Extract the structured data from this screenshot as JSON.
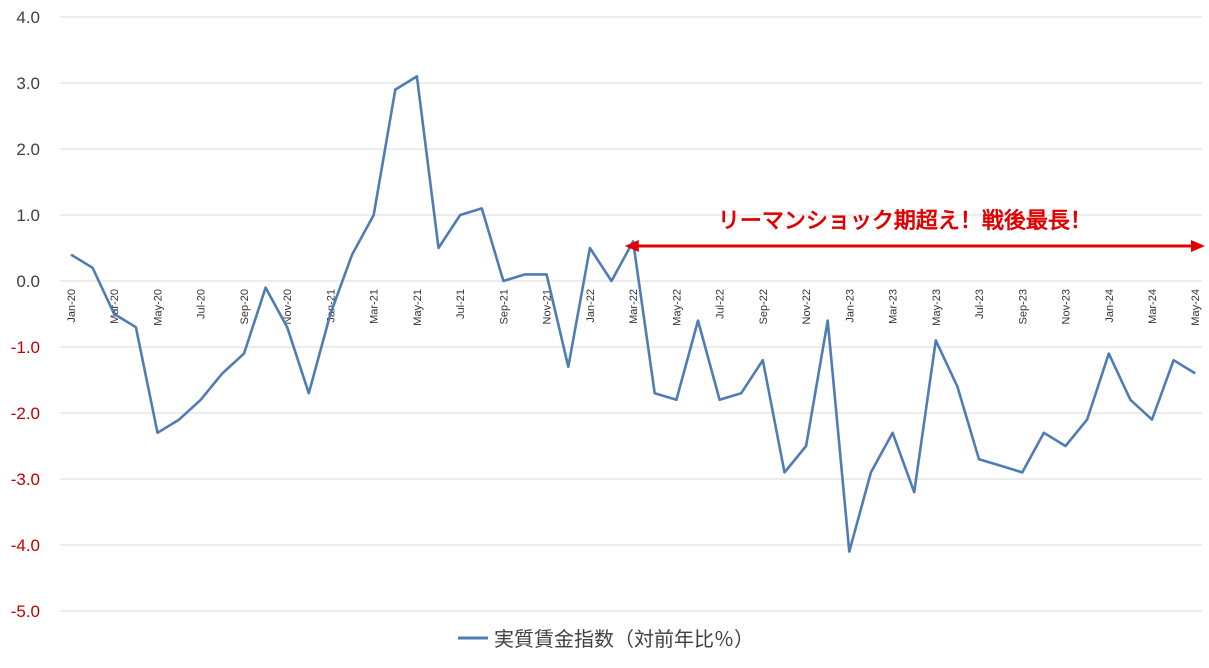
{
  "chart_data": {
    "type": "line",
    "title": "",
    "xlabel": "",
    "ylabel": "",
    "ylim": [
      -5.0,
      4.0
    ],
    "yticks": [
      "4.0",
      "3.0",
      "2.0",
      "1.0",
      "0.0",
      "-1.0",
      "-2.0",
      "-3.0",
      "-4.0",
      "-5.0"
    ],
    "ytick_values": [
      4,
      3,
      2,
      1,
      0,
      -1,
      -2,
      -3,
      -4,
      -5
    ],
    "grid": true,
    "legend_position": "bottom",
    "colors": {
      "series": "#4f7db3",
      "annotation": "#e00000",
      "positive_tick": "#404040",
      "negative_tick": "#c00000",
      "grid": "#d9d9d9"
    },
    "x": [
      "Jan-20",
      "Feb-20",
      "Mar-20",
      "Apr-20",
      "May-20",
      "Jun-20",
      "Jul-20",
      "Aug-20",
      "Sep-20",
      "Oct-20",
      "Nov-20",
      "Dec-20",
      "Jan-21",
      "Feb-21",
      "Mar-21",
      "Apr-21",
      "May-21",
      "Jun-21",
      "Jul-21",
      "Aug-21",
      "Sep-21",
      "Oct-21",
      "Nov-21",
      "Dec-21",
      "Jan-22",
      "Feb-22",
      "Mar-22",
      "Apr-22",
      "May-22",
      "Jun-22",
      "Jul-22",
      "Aug-22",
      "Sep-22",
      "Oct-22",
      "Nov-22",
      "Dec-22",
      "Jan-23",
      "Feb-23",
      "Mar-23",
      "Apr-23",
      "May-23",
      "Jun-23",
      "Jul-23",
      "Aug-23",
      "Sep-23",
      "Oct-23",
      "Nov-23",
      "Dec-23",
      "Jan-24",
      "Feb-24",
      "Mar-24",
      "Apr-24",
      "May-24"
    ],
    "x_tick_labels": [
      "Jan-20",
      "Mar-20",
      "May-20",
      "Jul-20",
      "Sep-20",
      "Nov-20",
      "Jan-21",
      "Mar-21",
      "May-21",
      "Jul-21",
      "Sep-21",
      "Nov-21",
      "Jan-22",
      "Mar-22",
      "May-22",
      "Jul-22",
      "Sep-22",
      "Nov-22",
      "Jan-23",
      "Mar-23",
      "May-23",
      "Jul-23",
      "Sep-23",
      "Nov-23",
      "Jan-24",
      "Mar-24",
      "May-24"
    ],
    "series": [
      {
        "name": "実質賃金指数（対前年比％）",
        "values": [
          0.4,
          0.2,
          -0.5,
          -0.7,
          -2.3,
          -2.1,
          -1.8,
          -1.4,
          -1.1,
          -0.1,
          -0.7,
          -1.7,
          -0.5,
          0.4,
          1.0,
          2.9,
          3.1,
          0.5,
          1.0,
          1.1,
          0.0,
          0.1,
          0.1,
          -1.3,
          0.5,
          0.0,
          0.6,
          -1.7,
          -1.8,
          -0.6,
          -1.8,
          -1.7,
          -1.2,
          -2.9,
          -2.5,
          -0.6,
          -4.1,
          -2.9,
          -2.3,
          -3.2,
          -0.9,
          -1.6,
          -2.7,
          -2.8,
          -2.9,
          -2.3,
          -2.5,
          -2.1,
          -1.1,
          -1.8,
          -2.1,
          -1.2,
          -1.4
        ]
      }
    ],
    "annotations": [
      {
        "text": "リーマンショック期超え！戦後最長！",
        "arrow_from": "Apr-22",
        "arrow_to": "May-24",
        "arrow_y": 0.53
      }
    ]
  }
}
